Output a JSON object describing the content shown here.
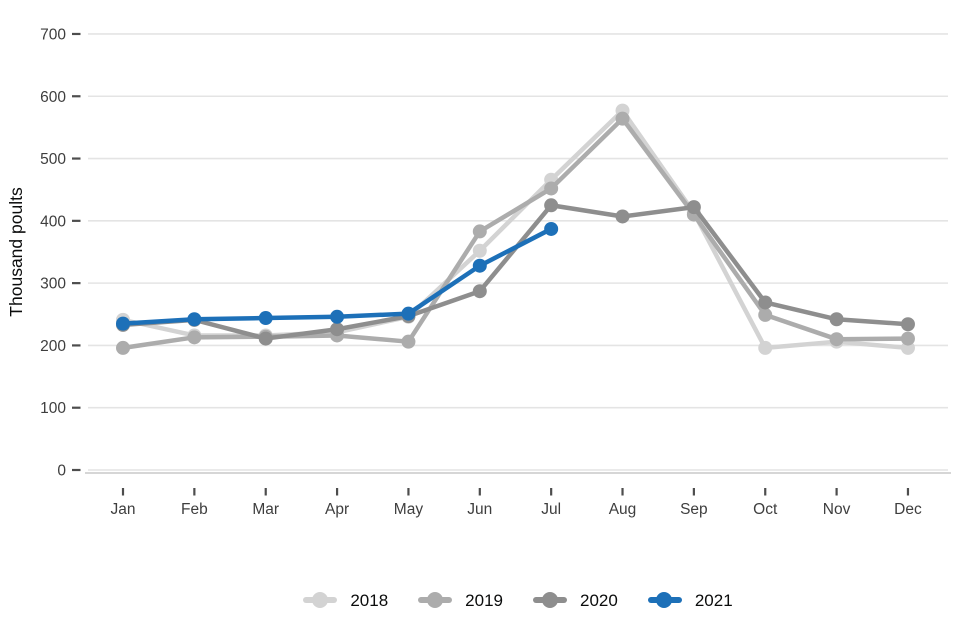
{
  "chart_data": {
    "type": "line",
    "title": "",
    "xlabel": "",
    "ylabel": "Thousand poults",
    "x": [
      "Jan",
      "Feb",
      "Mar",
      "Apr",
      "May",
      "Jun",
      "Jul",
      "Aug",
      "Sep",
      "Oct",
      "Nov",
      "Dec"
    ],
    "y_ticks": [
      0,
      100,
      200,
      300,
      400,
      500,
      600,
      700
    ],
    "ylim": [
      0,
      700
    ],
    "grid": "horizontal",
    "legend_position": "bottom",
    "series": [
      {
        "name": "2018",
        "color": "#d3d3d3",
        "values": [
          241,
          216,
          216,
          221,
          246,
          352,
          466,
          577,
          413,
          196,
          206,
          196
        ]
      },
      {
        "name": "2019",
        "color": "#acacac",
        "values": [
          196,
          213,
          214,
          216,
          206,
          383,
          452,
          564,
          410,
          249,
          210,
          211
        ]
      },
      {
        "name": "2020",
        "color": "#8e8e8e",
        "values": [
          233,
          241,
          211,
          226,
          247,
          287,
          425,
          407,
          422,
          269,
          242,
          234
        ]
      },
      {
        "name": "2021",
        "color": "#1d70b8",
        "values": [
          235,
          242,
          244,
          246,
          251,
          328,
          387,
          null,
          null,
          null,
          null,
          null
        ]
      }
    ]
  },
  "legend": {
    "items": [
      {
        "label": "2018"
      },
      {
        "label": "2019"
      },
      {
        "label": "2020"
      },
      {
        "label": "2021"
      }
    ]
  }
}
